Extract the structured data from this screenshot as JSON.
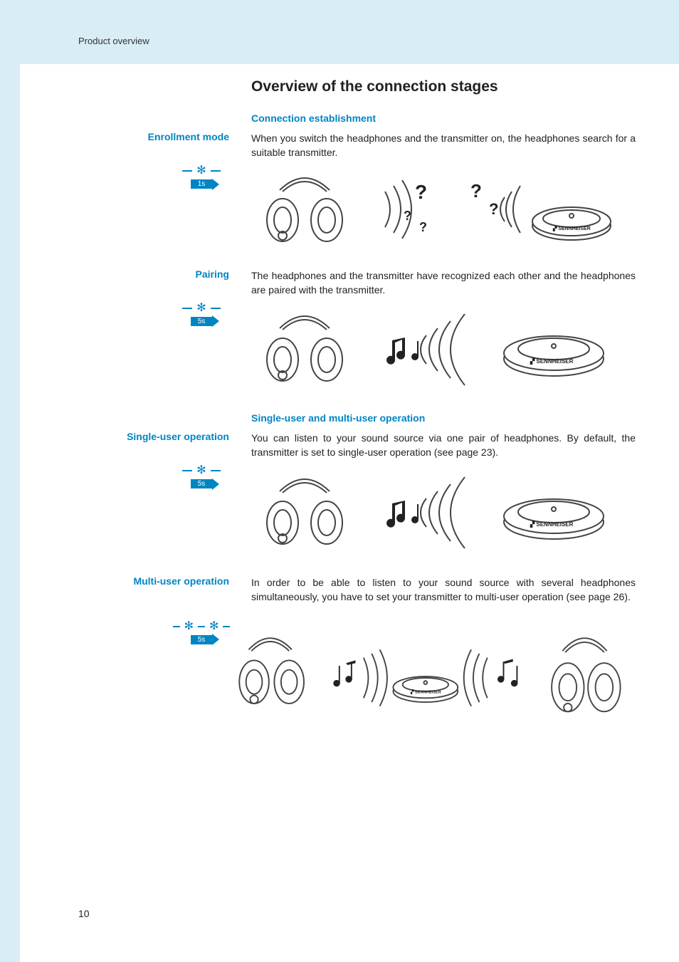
{
  "page": {
    "header_section": "Product overview",
    "number": "10"
  },
  "colors": {
    "accent": "#0085c3",
    "band": "#d9edf7",
    "text": "#222222",
    "line": "#444444"
  },
  "title": "Overview of the connection stages",
  "subsection1_title": "Connection establishment",
  "subsection2_title": "Single-user and multi-user operation",
  "stages": {
    "enrollment": {
      "label": "Enrollment mode",
      "time": "1s",
      "text": "When you switch the headphones and the transmitter on, the headphones search for a suitable transmitter."
    },
    "pairing": {
      "label": "Pairing",
      "time": "5s",
      "text": "The headphones and the transmitter have recognized each other and the headphones are paired with the transmitter."
    },
    "single": {
      "label": "Single-user operation",
      "time": "5s",
      "text": "You can listen to your sound source via one pair of headphones. By default, the transmitter is set to single-user operation (see page 23)."
    },
    "multi": {
      "label": "Multi-user operation",
      "time": "5s",
      "text": "In order to be able to listen to your sound source with several headphones simultaneously, you have to set your transmitter to multi-user operation (see page 26)."
    }
  }
}
